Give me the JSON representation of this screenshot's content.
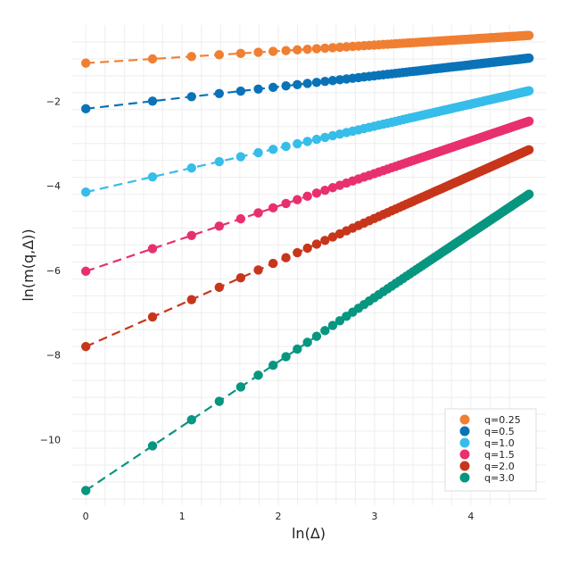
{
  "chart_data": {
    "type": "scatter",
    "title": "",
    "xlabel": "ln(Δ)",
    "ylabel": "ln(m(q,Δ))",
    "xlim": [
      -0.15,
      4.78
    ],
    "ylim": [
      -11.55,
      -0.2
    ],
    "x_ticks": [
      0,
      1,
      2,
      3,
      4
    ],
    "y_ticks": [
      -10,
      -8,
      -6,
      -4,
      -2
    ],
    "grid": true,
    "legend_position": "bottom-right",
    "x_values": "ln(k) for k = 1..100",
    "series": [
      {
        "name": "q=0.25",
        "color": "#F07F32",
        "intercept": -1.1,
        "slope": 0.142
      },
      {
        "name": "q=0.5",
        "color": "#0A73B8",
        "intercept": -2.18,
        "slope": 0.26
      },
      {
        "name": "q=1.0",
        "color": "#36BDEA",
        "intercept": -4.15,
        "slope": 0.52
      },
      {
        "name": "q=1.5",
        "color": "#E8306E",
        "intercept": -6.02,
        "slope": 0.77
      },
      {
        "name": "q=2.0",
        "color": "#C7361B",
        "intercept": -7.8,
        "slope": 1.01
      },
      {
        "name": "q=3.0",
        "color": "#079680",
        "intercept": -11.2,
        "slope": 1.52
      }
    ]
  }
}
